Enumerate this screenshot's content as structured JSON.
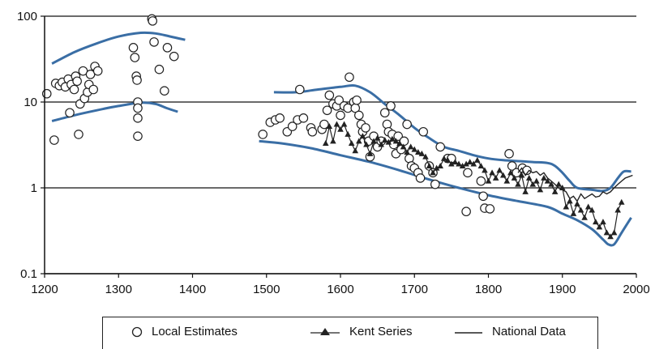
{
  "chart_data": {
    "type": "scatter",
    "title": "",
    "xlabel": "",
    "ylabel": "",
    "xlim": [
      1200,
      2000
    ],
    "ylim": [
      0.1,
      100
    ],
    "yscale": "log",
    "x_ticks": [
      "1200",
      "1300",
      "1400",
      "1500",
      "1600",
      "1700",
      "1800",
      "1900",
      "2000"
    ],
    "y_ticks": [
      "0.1",
      "1",
      "10",
      "100"
    ],
    "x_tick_values": [
      1200,
      1300,
      1400,
      1500,
      1600,
      1700,
      1800,
      1900,
      2000
    ],
    "y_tick_values": [
      0.1,
      1,
      10,
      100
    ],
    "grid": "horizontal",
    "legend_position": "bottom",
    "series": [
      {
        "name": "Local Estimates",
        "marker": "open-circle",
        "points": [
          [
            1203,
            12.5
          ],
          [
            1213,
            3.6
          ],
          [
            1215,
            16.5
          ],
          [
            1220,
            15.5
          ],
          [
            1224,
            17
          ],
          [
            1228,
            15
          ],
          [
            1232,
            18.5
          ],
          [
            1234,
            7.5
          ],
          [
            1236,
            16
          ],
          [
            1240,
            14
          ],
          [
            1242,
            20
          ],
          [
            1244,
            17.5
          ],
          [
            1246,
            4.2
          ],
          [
            1248,
            9.5
          ],
          [
            1252,
            23
          ],
          [
            1254,
            11
          ],
          [
            1258,
            13
          ],
          [
            1260,
            16
          ],
          [
            1262,
            21
          ],
          [
            1266,
            14
          ],
          [
            1268,
            26
          ],
          [
            1272,
            23
          ],
          [
            1320,
            43
          ],
          [
            1322,
            33
          ],
          [
            1324,
            20
          ],
          [
            1325,
            18
          ],
          [
            1326,
            10
          ],
          [
            1326,
            8.5
          ],
          [
            1326,
            6.5
          ],
          [
            1326,
            4
          ],
          [
            1345,
            93
          ],
          [
            1346,
            88
          ],
          [
            1348,
            50
          ],
          [
            1355,
            24
          ],
          [
            1362,
            13.5
          ],
          [
            1366,
            43
          ],
          [
            1375,
            34
          ],
          [
            1495,
            4.2
          ],
          [
            1505,
            5.8
          ],
          [
            1512,
            6.2
          ],
          [
            1518,
            6.5
          ],
          [
            1528,
            4.5
          ],
          [
            1535,
            5.2
          ],
          [
            1542,
            6.2
          ],
          [
            1545,
            14
          ],
          [
            1550,
            6.5
          ],
          [
            1560,
            5
          ],
          [
            1562,
            4.5
          ],
          [
            1575,
            4.8
          ],
          [
            1578,
            5.5
          ],
          [
            1582,
            8
          ],
          [
            1585,
            12
          ],
          [
            1590,
            9.5
          ],
          [
            1595,
            9
          ],
          [
            1598,
            10.5
          ],
          [
            1600,
            7
          ],
          [
            1605,
            9
          ],
          [
            1610,
            8.5
          ],
          [
            1612,
            19.5
          ],
          [
            1618,
            10
          ],
          [
            1620,
            8.5
          ],
          [
            1622,
            10.5
          ],
          [
            1625,
            7
          ],
          [
            1628,
            5.5
          ],
          [
            1630,
            4.5
          ],
          [
            1634,
            5
          ],
          [
            1638,
            3.5
          ],
          [
            1640,
            2.3
          ],
          [
            1645,
            4
          ],
          [
            1650,
            3
          ],
          [
            1655,
            3.5
          ],
          [
            1660,
            7.5
          ],
          [
            1663,
            5.5
          ],
          [
            1665,
            4.5
          ],
          [
            1668,
            9
          ],
          [
            1670,
            4.2
          ],
          [
            1672,
            3.2
          ],
          [
            1675,
            2.5
          ],
          [
            1678,
            4
          ],
          [
            1682,
            2.8
          ],
          [
            1686,
            3.5
          ],
          [
            1690,
            5.5
          ],
          [
            1693,
            2.2
          ],
          [
            1696,
            1.8
          ],
          [
            1700,
            1.7
          ],
          [
            1705,
            1.5
          ],
          [
            1708,
            1.3
          ],
          [
            1712,
            4.5
          ],
          [
            1720,
            1.8
          ],
          [
            1725,
            1.5
          ],
          [
            1728,
            1.1
          ],
          [
            1735,
            3
          ],
          [
            1745,
            2.2
          ],
          [
            1750,
            2.2
          ],
          [
            1770,
            0.53
          ],
          [
            1772,
            1.5
          ],
          [
            1790,
            1.2
          ],
          [
            1793,
            0.8
          ],
          [
            1795,
            0.58
          ],
          [
            1802,
            0.57
          ],
          [
            1828,
            2.5
          ],
          [
            1832,
            1.8
          ],
          [
            1838,
            1.5
          ],
          [
            1846,
            1.7
          ],
          [
            1852,
            1.6
          ]
        ]
      },
      {
        "name": "Kent Series",
        "marker": "filled-triangle-line",
        "points": [
          [
            1580,
            3.3
          ],
          [
            1585,
            5.2
          ],
          [
            1590,
            3.5
          ],
          [
            1595,
            5.5
          ],
          [
            1600,
            4.8
          ],
          [
            1605,
            5.5
          ],
          [
            1610,
            4.2
          ],
          [
            1615,
            3.3
          ],
          [
            1620,
            2.7
          ],
          [
            1625,
            3.5
          ],
          [
            1630,
            4
          ],
          [
            1635,
            3.2
          ],
          [
            1640,
            2.5
          ],
          [
            1645,
            3.5
          ],
          [
            1650,
            3.8
          ],
          [
            1655,
            3.2
          ],
          [
            1660,
            3.6
          ],
          [
            1665,
            3.4
          ],
          [
            1670,
            3.7
          ],
          [
            1675,
            3.5
          ],
          [
            1680,
            3.3
          ],
          [
            1685,
            3
          ],
          [
            1690,
            2.6
          ],
          [
            1695,
            3
          ],
          [
            1700,
            2.8
          ],
          [
            1705,
            2.6
          ],
          [
            1710,
            2.5
          ],
          [
            1715,
            2.3
          ],
          [
            1720,
            1.8
          ],
          [
            1725,
            1.5
          ],
          [
            1730,
            1.7
          ],
          [
            1735,
            1.8
          ],
          [
            1740,
            2.2
          ],
          [
            1745,
            2.1
          ],
          [
            1750,
            1.9
          ],
          [
            1755,
            2
          ],
          [
            1760,
            1.9
          ],
          [
            1765,
            1.8
          ],
          [
            1770,
            1.9
          ],
          [
            1775,
            2
          ],
          [
            1780,
            1.9
          ],
          [
            1785,
            2.1
          ],
          [
            1790,
            1.8
          ],
          [
            1795,
            1.6
          ],
          [
            1800,
            1.2
          ],
          [
            1805,
            1.5
          ],
          [
            1810,
            1.3
          ],
          [
            1815,
            1.6
          ],
          [
            1820,
            1.4
          ],
          [
            1825,
            1.2
          ],
          [
            1830,
            1.5
          ],
          [
            1835,
            1.3
          ],
          [
            1840,
            1.1
          ],
          [
            1845,
            1.4
          ],
          [
            1850,
            0.9
          ],
          [
            1855,
            1.3
          ],
          [
            1860,
            1.1
          ],
          [
            1865,
            1.2
          ],
          [
            1870,
            0.95
          ],
          [
            1875,
            1.3
          ],
          [
            1880,
            1.2
          ],
          [
            1885,
            1.1
          ],
          [
            1890,
            0.9
          ],
          [
            1895,
            1.1
          ],
          [
            1900,
            1
          ],
          [
            1905,
            0.6
          ],
          [
            1910,
            0.7
          ],
          [
            1915,
            0.5
          ],
          [
            1920,
            0.65
          ],
          [
            1925,
            0.55
          ],
          [
            1930,
            0.45
          ],
          [
            1935,
            0.6
          ],
          [
            1940,
            0.55
          ],
          [
            1945,
            0.4
          ],
          [
            1950,
            0.35
          ],
          [
            1955,
            0.4
          ],
          [
            1960,
            0.3
          ],
          [
            1965,
            0.27
          ],
          [
            1970,
            0.3
          ],
          [
            1975,
            0.55
          ],
          [
            1980,
            0.68
          ]
        ]
      },
      {
        "name": "National Data",
        "marker": "thin-line",
        "points": [
          [
            1840,
            1.5
          ],
          [
            1845,
            1.7
          ],
          [
            1850,
            1.4
          ],
          [
            1855,
            1.6
          ],
          [
            1860,
            1.5
          ],
          [
            1865,
            1.55
          ],
          [
            1870,
            1.4
          ],
          [
            1875,
            1.5
          ],
          [
            1880,
            1.3
          ],
          [
            1885,
            1.2
          ],
          [
            1890,
            1.1
          ],
          [
            1895,
            1.0
          ],
          [
            1900,
            0.95
          ],
          [
            1905,
            0.9
          ],
          [
            1910,
            0.75
          ],
          [
            1915,
            0.8
          ],
          [
            1920,
            0.7
          ],
          [
            1925,
            0.85
          ],
          [
            1930,
            0.75
          ],
          [
            1935,
            0.8
          ],
          [
            1940,
            0.85
          ],
          [
            1945,
            0.78
          ],
          [
            1950,
            0.8
          ],
          [
            1955,
            0.9
          ],
          [
            1960,
            0.85
          ],
          [
            1965,
            0.9
          ],
          [
            1970,
            1.0
          ],
          [
            1975,
            1.1
          ],
          [
            1980,
            1.2
          ],
          [
            1985,
            1.3
          ],
          [
            1990,
            1.35
          ],
          [
            1995,
            1.4
          ]
        ]
      }
    ],
    "envelopes": [
      {
        "bound": "upper",
        "segment": "medieval",
        "points": [
          [
            1210,
            28
          ],
          [
            1240,
            38
          ],
          [
            1270,
            48
          ],
          [
            1300,
            58
          ],
          [
            1330,
            64
          ],
          [
            1350,
            63
          ],
          [
            1370,
            58
          ],
          [
            1390,
            53
          ]
        ]
      },
      {
        "bound": "lower",
        "segment": "medieval",
        "points": [
          [
            1210,
            6
          ],
          [
            1240,
            7
          ],
          [
            1270,
            8
          ],
          [
            1300,
            9
          ],
          [
            1330,
            9.8
          ],
          [
            1350,
            9.5
          ],
          [
            1365,
            8.5
          ],
          [
            1380,
            7.7
          ]
        ]
      },
      {
        "bound": "upper",
        "segment": "modern",
        "points": [
          [
            1510,
            13
          ],
          [
            1540,
            13
          ],
          [
            1570,
            14
          ],
          [
            1600,
            15
          ],
          [
            1620,
            15.5
          ],
          [
            1640,
            13
          ],
          [
            1660,
            9.5
          ],
          [
            1680,
            7
          ],
          [
            1700,
            5
          ],
          [
            1720,
            3.8
          ],
          [
            1740,
            3
          ],
          [
            1760,
            2.7
          ],
          [
            1780,
            2.4
          ],
          [
            1800,
            2.2
          ],
          [
            1820,
            2.1
          ],
          [
            1840,
            2.05
          ],
          [
            1860,
            2.0
          ],
          [
            1880,
            1.95
          ],
          [
            1890,
            1.8
          ],
          [
            1900,
            1.5
          ],
          [
            1910,
            1.2
          ],
          [
            1920,
            1.0
          ],
          [
            1940,
            0.95
          ],
          [
            1955,
            0.92
          ],
          [
            1965,
            1.0
          ],
          [
            1975,
            1.3
          ],
          [
            1983,
            1.55
          ],
          [
            1993,
            1.55
          ]
        ]
      },
      {
        "bound": "lower",
        "segment": "modern",
        "points": [
          [
            1490,
            3.5
          ],
          [
            1520,
            3.3
          ],
          [
            1560,
            2.9
          ],
          [
            1600,
            2.4
          ],
          [
            1640,
            2.0
          ],
          [
            1680,
            1.6
          ],
          [
            1720,
            1.25
          ],
          [
            1760,
            1.0
          ],
          [
            1800,
            0.82
          ],
          [
            1840,
            0.7
          ],
          [
            1880,
            0.6
          ],
          [
            1900,
            0.5
          ],
          [
            1920,
            0.42
          ],
          [
            1940,
            0.33
          ],
          [
            1955,
            0.25
          ],
          [
            1962,
            0.22
          ],
          [
            1970,
            0.22
          ],
          [
            1980,
            0.3
          ],
          [
            1993,
            0.45
          ]
        ]
      }
    ],
    "colors": {
      "envelope": "#3a6ea5",
      "markers": "#222222",
      "grid": "#111111"
    }
  },
  "legend": {
    "local_label": "Local Estimates",
    "kent_label": "Kent Series",
    "national_label": "National Data"
  }
}
